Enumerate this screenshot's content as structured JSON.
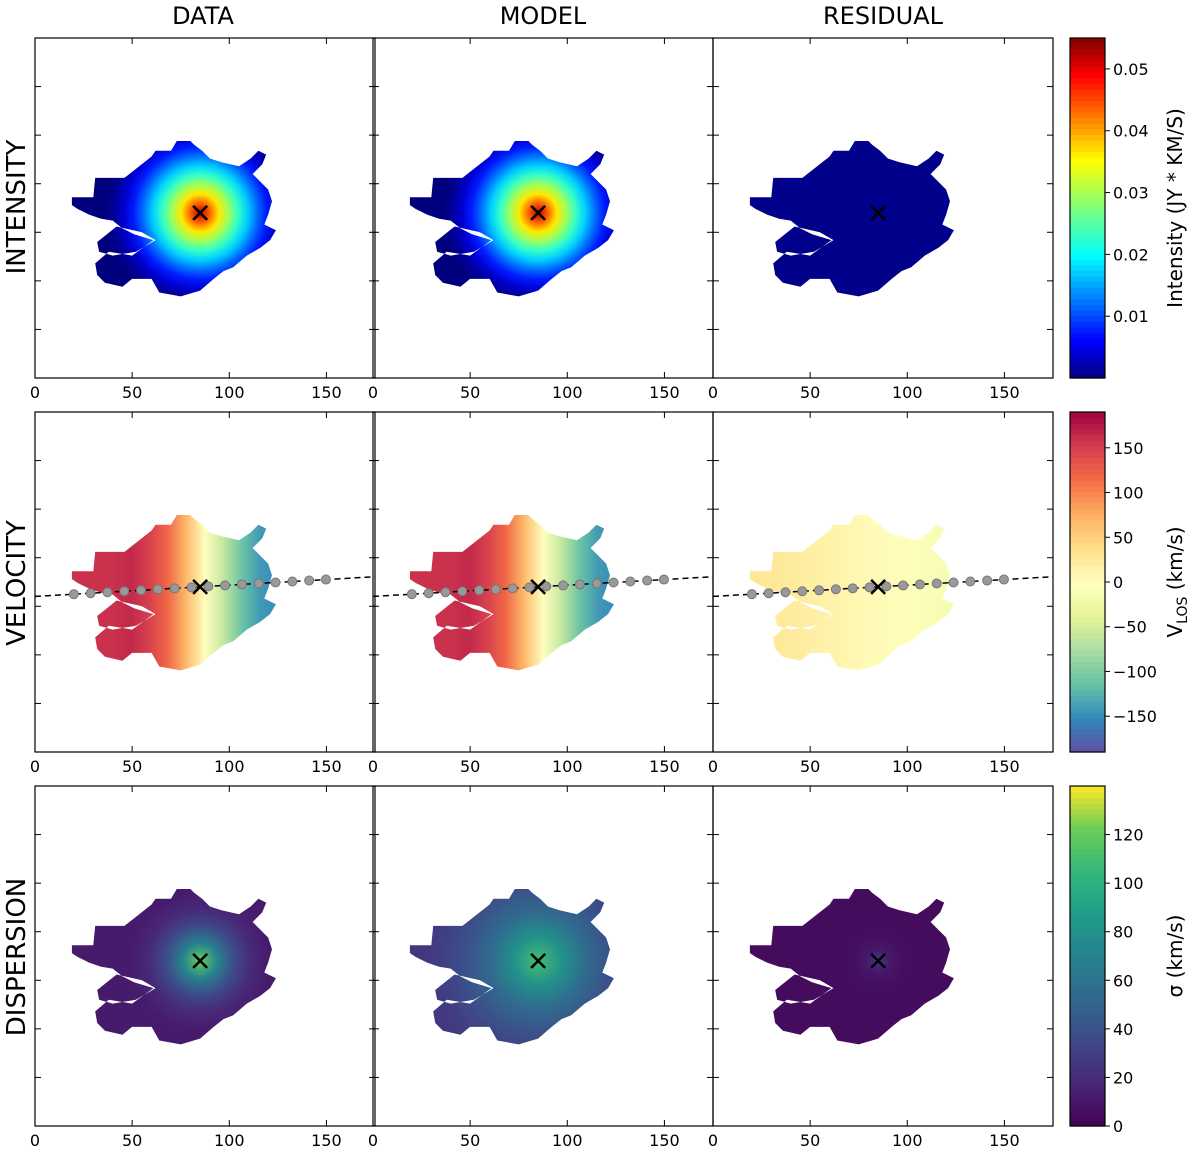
{
  "column_titles": [
    "DATA",
    "MODEL",
    "RESIDUAL"
  ],
  "row_titles": [
    "INTENSITY",
    "VELOCITY",
    "DISPERSION"
  ],
  "chart_data": [
    {
      "type": "heatmap",
      "row": "INTENSITY",
      "panels": [
        "DATA",
        "MODEL",
        "RESIDUAL"
      ],
      "x_ticks": [
        0,
        50,
        100,
        150
      ],
      "xlim": [
        0,
        175
      ],
      "center": {
        "x": 85,
        "y": 90
      },
      "colorbar": {
        "label_main": "Intensity (JY * KM/S)",
        "label_sub": "",
        "colormap": "jet",
        "range": [
          0,
          0.055
        ],
        "ticks": [
          0.01,
          0.02,
          0.03,
          0.04,
          0.05
        ],
        "tick_labels": [
          "0.01",
          "0.02",
          "0.03",
          "0.04",
          "0.05"
        ]
      }
    },
    {
      "type": "heatmap",
      "row": "VELOCITY",
      "panels": [
        "DATA",
        "MODEL",
        "RESIDUAL"
      ],
      "x_ticks": [
        0,
        50,
        100,
        150
      ],
      "xlim": [
        0,
        175
      ],
      "center": {
        "x": 85,
        "y": 90
      },
      "colorbar": {
        "label_main": "V",
        "label_sub": "LOS",
        "label_unit": " (km/s)",
        "colormap": "Spectral",
        "range": [
          -190,
          190
        ],
        "ticks": [
          -150,
          -100,
          -50,
          0,
          50,
          100,
          150
        ],
        "tick_labels": [
          "−150",
          "−100",
          "−50",
          "0",
          "50",
          "100",
          "150"
        ]
      }
    },
    {
      "type": "heatmap",
      "row": "DISPERSION",
      "panels": [
        "DATA",
        "MODEL",
        "RESIDUAL"
      ],
      "x_ticks": [
        0,
        50,
        100,
        150
      ],
      "xlim": [
        0,
        175
      ],
      "center": {
        "x": 85,
        "y": 90
      },
      "colorbar": {
        "label_main": "σ (km/s)",
        "label_sub": "",
        "colormap": "viridis",
        "range": [
          0,
          140
        ],
        "ticks": [
          0,
          20,
          40,
          60,
          80,
          100,
          120
        ],
        "tick_labels": [
          "0",
          "20",
          "40",
          "60",
          "80",
          "100",
          "120"
        ]
      }
    }
  ]
}
